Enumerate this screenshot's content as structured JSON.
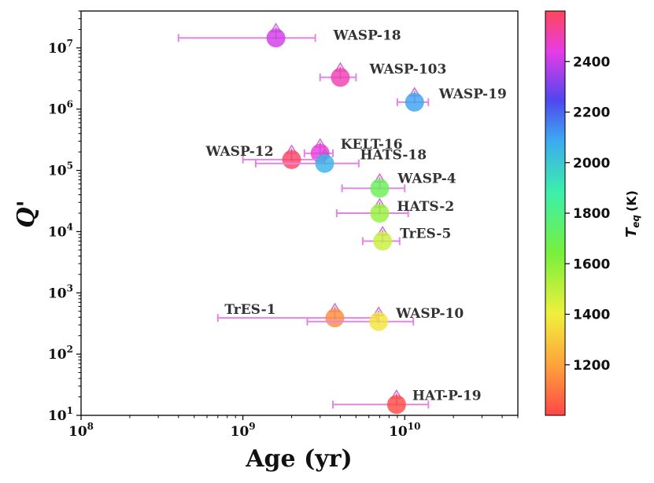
{
  "chart_data": {
    "type": "scatter",
    "xlabel": "Age (yr)",
    "ylabel": "Q'",
    "xscale": "log",
    "yscale": "log",
    "xlim": [
      100000000.0,
      50000000000.0
    ],
    "ylim": [
      10,
      40000000.0
    ],
    "x_ticks": [
      {
        "value": 100000000.0,
        "base": "10",
        "exp": "8"
      },
      {
        "value": 1000000000.0,
        "base": "10",
        "exp": "9"
      },
      {
        "value": 10000000000.0,
        "base": "10",
        "exp": "10"
      }
    ],
    "y_ticks": [
      {
        "value": 10,
        "base": "10",
        "exp": "1"
      },
      {
        "value": 100,
        "base": "10",
        "exp": "2"
      },
      {
        "value": 1000,
        "base": "10",
        "exp": "3"
      },
      {
        "value": 10000,
        "base": "10",
        "exp": "4"
      },
      {
        "value": 100000,
        "base": "10",
        "exp": "5"
      },
      {
        "value": 1000000,
        "base": "10",
        "exp": "6"
      },
      {
        "value": 10000000,
        "base": "10",
        "exp": "7"
      }
    ],
    "colorbar": {
      "label": "T_eq (K)",
      "label_main": "T",
      "label_sub": "eq",
      "label_unit": "(K)",
      "min": 1000,
      "max": 2600,
      "ticks": [
        1200,
        1400,
        1600,
        1800,
        2000,
        2200,
        2400
      ],
      "tick_labels": [
        "1200",
        "1400",
        "1600",
        "1800",
        "2000",
        "2200",
        "2400"
      ]
    },
    "points": [
      {
        "name": "WASP-18",
        "age": 1600000000.0,
        "age_lo": 400000000.0,
        "age_hi": 2800000000.0,
        "q": 14500000.0,
        "teq": 2410
      },
      {
        "name": "WASP-103",
        "age": 4000000000.0,
        "age_lo": 3000000000.0,
        "age_hi": 5000000000.0,
        "q": 3300000.0,
        "teq": 2500
      },
      {
        "name": "WASP-19",
        "age": 11500000000.0,
        "age_lo": 9000000000.0,
        "age_hi": 14000000000.0,
        "q": 1300000.0,
        "teq": 2100
      },
      {
        "name": "KELT-16",
        "age": 3000000000.0,
        "age_lo": 2400000000.0,
        "age_hi": 3600000000.0,
        "q": 190000.0,
        "teq": 2450
      },
      {
        "name": "WASP-12",
        "age": 2000000000.0,
        "age_lo": 1000000000.0,
        "age_hi": 3000000000.0,
        "q": 150000.0,
        "teq": 2590
      },
      {
        "name": "HATS-18",
        "age": 3200000000.0,
        "age_lo": 1200000000.0,
        "age_hi": 5200000000.0,
        "q": 130000.0,
        "teq": 2060
      },
      {
        "name": "WASP-4",
        "age": 7000000000.0,
        "age_lo": 4100000000.0,
        "age_hi": 10000000000.0,
        "q": 51000.0,
        "teq": 1700
      },
      {
        "name": "HATS-2",
        "age": 7000000000.0,
        "age_lo": 3800000000.0,
        "age_hi": 10500000000.0,
        "q": 20000.0,
        "teq": 1580
      },
      {
        "name": "TrES-5",
        "age": 7300000000.0,
        "age_lo": 5500000000.0,
        "age_hi": 9300000000.0,
        "q": 7000.0,
        "teq": 1480
      },
      {
        "name": "TrES-1",
        "age": 3700000000.0,
        "age_lo": 700000000.0,
        "age_hi": 6700000000.0,
        "q": 390,
        "teq": 1150
      },
      {
        "name": "WASP-10",
        "age": 6900000000.0,
        "age_lo": 2500000000.0,
        "age_hi": 11300000000.0,
        "q": 340,
        "teq": 1370
      },
      {
        "name": "HAT-P-19",
        "age": 8900000000.0,
        "age_lo": 3600000000.0,
        "age_hi": 14000000000.0,
        "q": 15,
        "teq": 1010
      }
    ]
  }
}
